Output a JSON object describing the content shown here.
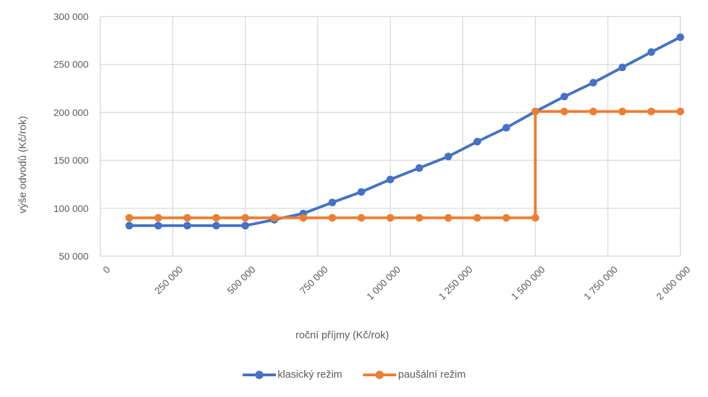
{
  "chart_data": {
    "type": "line",
    "title": "",
    "xlabel": "roční příjmy (Kč/rok)",
    "ylabel": "výše odvodů (Kč/rok)",
    "xlim": [
      0,
      2000000
    ],
    "ylim": [
      50000,
      300000
    ],
    "grid": true,
    "legend_position": "bottom",
    "x_ticks": {
      "values": [
        0,
        250000,
        500000,
        750000,
        1000000,
        1250000,
        1500000,
        1750000,
        2000000
      ],
      "labels": [
        "0",
        "250 000",
        "500 000",
        "750 000",
        "1 000 000",
        "1 250 000",
        "1 500 000",
        "1 750 000",
        "2 000 000"
      ]
    },
    "y_ticks": {
      "values": [
        50000,
        100000,
        150000,
        200000,
        250000,
        300000
      ],
      "labels": [
        "50 000",
        "100 000",
        "150 000",
        "200 000",
        "250 000",
        "300 000"
      ]
    },
    "series": [
      {
        "name": "klasický režim",
        "color": "#4472C4",
        "marker": "circle",
        "points": [
          [
            100000,
            81840
          ],
          [
            200000,
            81840
          ],
          [
            300000,
            81840
          ],
          [
            400000,
            81840
          ],
          [
            500000,
            81840
          ],
          [
            600000,
            88000
          ],
          [
            700000,
            94500
          ],
          [
            800000,
            106000
          ],
          [
            900000,
            117000
          ],
          [
            1000000,
            130000
          ],
          [
            1100000,
            142000
          ],
          [
            1200000,
            154000
          ],
          [
            1300000,
            169500
          ],
          [
            1400000,
            184000
          ],
          [
            1500000,
            200900
          ],
          [
            1600000,
            216500
          ],
          [
            1700000,
            231000
          ],
          [
            1800000,
            247000
          ],
          [
            1900000,
            263000
          ],
          [
            2000000,
            278500
          ]
        ]
      },
      {
        "name": "paušální režim",
        "color": "#ED7D31",
        "marker": "circle",
        "points": [
          [
            100000,
            89976
          ],
          [
            200000,
            89976
          ],
          [
            300000,
            89976
          ],
          [
            400000,
            89976
          ],
          [
            500000,
            89976
          ],
          [
            600000,
            89976
          ],
          [
            700000,
            89976
          ],
          [
            800000,
            89976
          ],
          [
            900000,
            89976
          ],
          [
            1000000,
            89976
          ],
          [
            1100000,
            89976
          ],
          [
            1200000,
            89976
          ],
          [
            1300000,
            89976
          ],
          [
            1400000,
            89976
          ],
          [
            1500000,
            89976
          ],
          [
            1500000,
            200940
          ],
          [
            1600000,
            200940
          ],
          [
            1700000,
            200940
          ],
          [
            1800000,
            200940
          ],
          [
            1900000,
            200940
          ],
          [
            2000000,
            200940
          ]
        ]
      }
    ],
    "colors": {
      "grid": "#D9D9D9",
      "text": "#595959",
      "background": "#FFFFFF"
    }
  }
}
